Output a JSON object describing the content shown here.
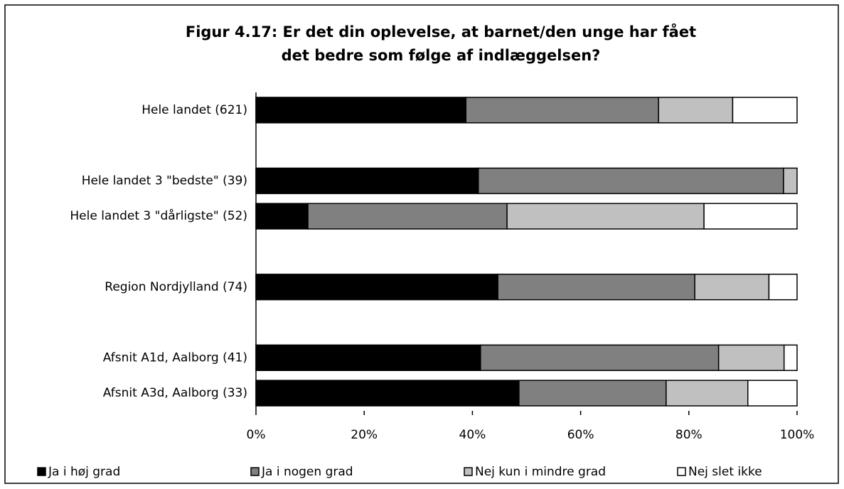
{
  "chart_data": {
    "type": "stacked-bar-horizontal",
    "title": [
      "Figur 4.17: Er det din oplevelse, at barnet/den unge har fået",
      "det bedre som følge af indlæggelsen?"
    ],
    "categories": [
      "Hele landet  (621)",
      null,
      "Hele landet 3 \"bedste\" (39)",
      "Hele landet 3 \"dårligste\" (52)",
      null,
      "Region Nordjylland (74)",
      null,
      "Afsnit A1d, Aalborg (41)",
      "Afsnit A3d, Aalborg (33)"
    ],
    "series": [
      {
        "name": "Ja i høj grad",
        "color": "#000000",
        "values": [
          38.8,
          null,
          41.1,
          9.6,
          null,
          44.7,
          null,
          41.5,
          48.6
        ]
      },
      {
        "name": "Ja i nogen grad",
        "color": "#808080",
        "values": [
          35.6,
          null,
          56.4,
          36.8,
          null,
          36.4,
          null,
          44.0,
          27.2
        ]
      },
      {
        "name": "Nej kun i mindre grad",
        "color": "#c0c0c0",
        "values": [
          13.7,
          null,
          2.5,
          36.4,
          null,
          13.7,
          null,
          12.1,
          15.1
        ]
      },
      {
        "name": "Nej slet ikke",
        "color": "#ffffff",
        "values": [
          11.9,
          null,
          0,
          17.2,
          null,
          5.2,
          null,
          2.4,
          9.1
        ]
      }
    ],
    "xlim": [
      0,
      100
    ],
    "xticks": [
      {
        "value": 0,
        "label": "0%"
      },
      {
        "value": 20,
        "label": "20%"
      },
      {
        "value": 40,
        "label": "40%"
      },
      {
        "value": 60,
        "label": "60%"
      },
      {
        "value": 80,
        "label": "80%"
      },
      {
        "value": 100,
        "label": "100%"
      }
    ],
    "legend": "bottom"
  }
}
